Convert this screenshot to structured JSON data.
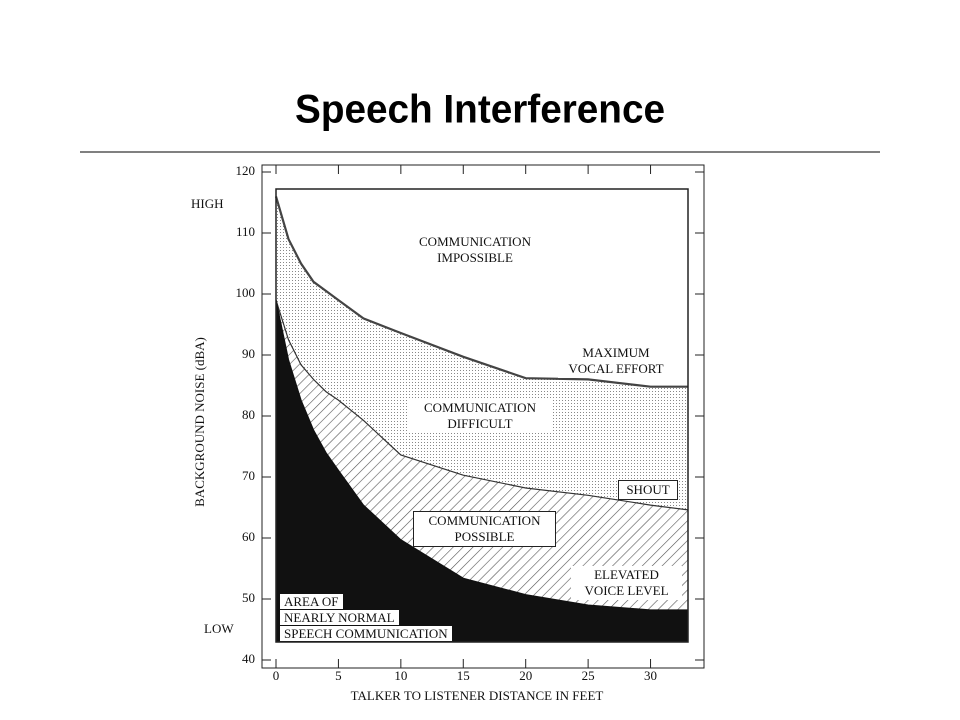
{
  "chart_data": {
    "type": "area",
    "title": "Speech Interference",
    "x_label": "TALKER TO LISTENER DISTANCE IN FEET",
    "y_label": "BACKGROUND NOISE (dBA)",
    "y_notes": [
      "HIGH",
      "LOW"
    ],
    "x": [
      0,
      1,
      2,
      3,
      4,
      5,
      7,
      10,
      15,
      20,
      25,
      30,
      33
    ],
    "series": [
      {
        "name": "MAXIMUM\nVOCAL EFFORT",
        "color": "#444444",
        "fill": "dots",
        "values": [
          116,
          109,
          105,
          102,
          100.5,
          99,
          96,
          93.6,
          89.7,
          86.2,
          86,
          84.8,
          84.8
        ]
      },
      {
        "name": "SHOUT",
        "color": "#333333",
        "fill": "hatch",
        "values": [
          99,
          92.5,
          88.4,
          86,
          84,
          82.6,
          79.3,
          73.6,
          70.3,
          68.2,
          67,
          65.4,
          64.6
        ]
      },
      {
        "name": "ELEVATED\nVOICE LEVEL",
        "color": "#111111",
        "fill": "solid",
        "values": [
          99,
          89.2,
          82.6,
          77.7,
          74,
          71.1,
          65.4,
          59.7,
          53.4,
          50.7,
          49,
          48.2,
          48.2
        ]
      }
    ],
    "annotations": [
      "COMMUNICATION\nIMPOSSIBLE",
      "COMMUNICATION\nDIFFICULT",
      "COMMUNICATION\nPOSSIBLE",
      "AREA OF\nNEARLY NORMAL\nSPEECH COMMUNICATION"
    ],
    "xlim": [
      0,
      33
    ],
    "ylim": [
      40,
      120
    ],
    "xticks": [
      0,
      5,
      10,
      15,
      20,
      25,
      30
    ],
    "yticks": [
      40,
      50,
      60,
      70,
      80,
      90,
      100,
      110,
      120
    ]
  }
}
